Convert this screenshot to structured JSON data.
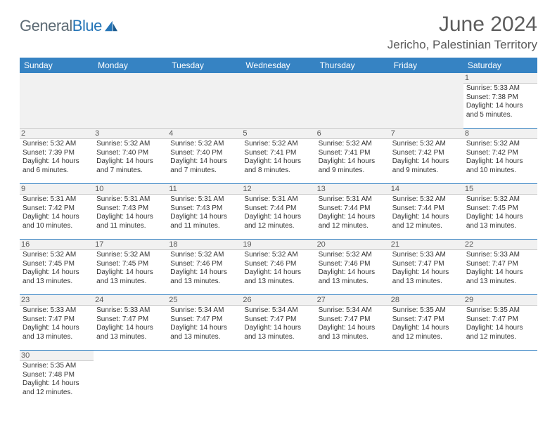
{
  "logo": {
    "text1": "General",
    "text2": "Blue"
  },
  "title": "June 2024",
  "location": "Jericho, Palestinian Territory",
  "day_headers": [
    "Sunday",
    "Monday",
    "Tuesday",
    "Wednesday",
    "Thursday",
    "Friday",
    "Saturday"
  ],
  "colors": {
    "header_bg": "#3683c3",
    "header_text": "#ffffff",
    "cell_border": "#3683c3",
    "daynum_bg": "#f1f1f1",
    "text": "#333333"
  },
  "days": [
    {
      "n": "1",
      "sr": "Sunrise: 5:33 AM",
      "ss": "Sunset: 7:38 PM",
      "d1": "Daylight: 14 hours",
      "d2": "and 5 minutes."
    },
    {
      "n": "2",
      "sr": "Sunrise: 5:32 AM",
      "ss": "Sunset: 7:39 PM",
      "d1": "Daylight: 14 hours",
      "d2": "and 6 minutes."
    },
    {
      "n": "3",
      "sr": "Sunrise: 5:32 AM",
      "ss": "Sunset: 7:40 PM",
      "d1": "Daylight: 14 hours",
      "d2": "and 7 minutes."
    },
    {
      "n": "4",
      "sr": "Sunrise: 5:32 AM",
      "ss": "Sunset: 7:40 PM",
      "d1": "Daylight: 14 hours",
      "d2": "and 7 minutes."
    },
    {
      "n": "5",
      "sr": "Sunrise: 5:32 AM",
      "ss": "Sunset: 7:41 PM",
      "d1": "Daylight: 14 hours",
      "d2": "and 8 minutes."
    },
    {
      "n": "6",
      "sr": "Sunrise: 5:32 AM",
      "ss": "Sunset: 7:41 PM",
      "d1": "Daylight: 14 hours",
      "d2": "and 9 minutes."
    },
    {
      "n": "7",
      "sr": "Sunrise: 5:32 AM",
      "ss": "Sunset: 7:42 PM",
      "d1": "Daylight: 14 hours",
      "d2": "and 9 minutes."
    },
    {
      "n": "8",
      "sr": "Sunrise: 5:32 AM",
      "ss": "Sunset: 7:42 PM",
      "d1": "Daylight: 14 hours",
      "d2": "and 10 minutes."
    },
    {
      "n": "9",
      "sr": "Sunrise: 5:31 AM",
      "ss": "Sunset: 7:42 PM",
      "d1": "Daylight: 14 hours",
      "d2": "and 10 minutes."
    },
    {
      "n": "10",
      "sr": "Sunrise: 5:31 AM",
      "ss": "Sunset: 7:43 PM",
      "d1": "Daylight: 14 hours",
      "d2": "and 11 minutes."
    },
    {
      "n": "11",
      "sr": "Sunrise: 5:31 AM",
      "ss": "Sunset: 7:43 PM",
      "d1": "Daylight: 14 hours",
      "d2": "and 11 minutes."
    },
    {
      "n": "12",
      "sr": "Sunrise: 5:31 AM",
      "ss": "Sunset: 7:44 PM",
      "d1": "Daylight: 14 hours",
      "d2": "and 12 minutes."
    },
    {
      "n": "13",
      "sr": "Sunrise: 5:31 AM",
      "ss": "Sunset: 7:44 PM",
      "d1": "Daylight: 14 hours",
      "d2": "and 12 minutes."
    },
    {
      "n": "14",
      "sr": "Sunrise: 5:32 AM",
      "ss": "Sunset: 7:44 PM",
      "d1": "Daylight: 14 hours",
      "d2": "and 12 minutes."
    },
    {
      "n": "15",
      "sr": "Sunrise: 5:32 AM",
      "ss": "Sunset: 7:45 PM",
      "d1": "Daylight: 14 hours",
      "d2": "and 13 minutes."
    },
    {
      "n": "16",
      "sr": "Sunrise: 5:32 AM",
      "ss": "Sunset: 7:45 PM",
      "d1": "Daylight: 14 hours",
      "d2": "and 13 minutes."
    },
    {
      "n": "17",
      "sr": "Sunrise: 5:32 AM",
      "ss": "Sunset: 7:45 PM",
      "d1": "Daylight: 14 hours",
      "d2": "and 13 minutes."
    },
    {
      "n": "18",
      "sr": "Sunrise: 5:32 AM",
      "ss": "Sunset: 7:46 PM",
      "d1": "Daylight: 14 hours",
      "d2": "and 13 minutes."
    },
    {
      "n": "19",
      "sr": "Sunrise: 5:32 AM",
      "ss": "Sunset: 7:46 PM",
      "d1": "Daylight: 14 hours",
      "d2": "and 13 minutes."
    },
    {
      "n": "20",
      "sr": "Sunrise: 5:32 AM",
      "ss": "Sunset: 7:46 PM",
      "d1": "Daylight: 14 hours",
      "d2": "and 13 minutes."
    },
    {
      "n": "21",
      "sr": "Sunrise: 5:33 AM",
      "ss": "Sunset: 7:47 PM",
      "d1": "Daylight: 14 hours",
      "d2": "and 13 minutes."
    },
    {
      "n": "22",
      "sr": "Sunrise: 5:33 AM",
      "ss": "Sunset: 7:47 PM",
      "d1": "Daylight: 14 hours",
      "d2": "and 13 minutes."
    },
    {
      "n": "23",
      "sr": "Sunrise: 5:33 AM",
      "ss": "Sunset: 7:47 PM",
      "d1": "Daylight: 14 hours",
      "d2": "and 13 minutes."
    },
    {
      "n": "24",
      "sr": "Sunrise: 5:33 AM",
      "ss": "Sunset: 7:47 PM",
      "d1": "Daylight: 14 hours",
      "d2": "and 13 minutes."
    },
    {
      "n": "25",
      "sr": "Sunrise: 5:34 AM",
      "ss": "Sunset: 7:47 PM",
      "d1": "Daylight: 14 hours",
      "d2": "and 13 minutes."
    },
    {
      "n": "26",
      "sr": "Sunrise: 5:34 AM",
      "ss": "Sunset: 7:47 PM",
      "d1": "Daylight: 14 hours",
      "d2": "and 13 minutes."
    },
    {
      "n": "27",
      "sr": "Sunrise: 5:34 AM",
      "ss": "Sunset: 7:47 PM",
      "d1": "Daylight: 14 hours",
      "d2": "and 13 minutes."
    },
    {
      "n": "28",
      "sr": "Sunrise: 5:35 AM",
      "ss": "Sunset: 7:47 PM",
      "d1": "Daylight: 14 hours",
      "d2": "and 12 minutes."
    },
    {
      "n": "29",
      "sr": "Sunrise: 5:35 AM",
      "ss": "Sunset: 7:47 PM",
      "d1": "Daylight: 14 hours",
      "d2": "and 12 minutes."
    },
    {
      "n": "30",
      "sr": "Sunrise: 5:35 AM",
      "ss": "Sunset: 7:48 PM",
      "d1": "Daylight: 14 hours",
      "d2": "and 12 minutes."
    }
  ]
}
